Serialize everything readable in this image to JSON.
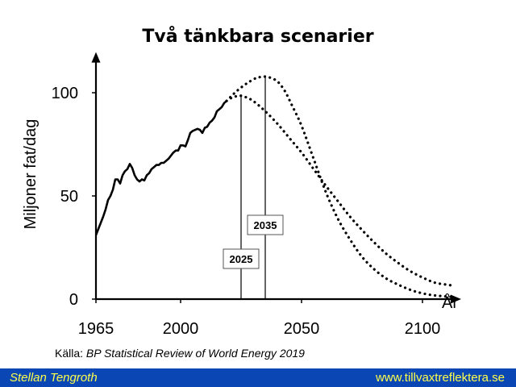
{
  "chart_data": {
    "type": "line",
    "title": "Två tänkbara scenarier",
    "ylabel": "Miljoner fat/dag",
    "xlabel": "År",
    "xlim": [
      1965,
      2115
    ],
    "ylim": [
      0,
      115
    ],
    "x_ticks": [
      1965,
      2000,
      2050,
      2100
    ],
    "y_ticks": [
      0,
      50,
      100
    ],
    "grid": false,
    "series": [
      {
        "style": "solid",
        "x": [
          1965,
          1966,
          1967,
          1968,
          1969,
          1970,
          1971,
          1972,
          1973,
          1974,
          1975,
          1976,
          1977,
          1978,
          1979,
          1980,
          1981,
          1982,
          1983,
          1984,
          1985,
          1986,
          1987,
          1988,
          1989,
          1990,
          1991,
          1992,
          1993,
          1994,
          1995,
          1996,
          1997,
          1998,
          1999,
          2000,
          2001,
          2002,
          2003,
          2004,
          2005,
          2006,
          2007,
          2008,
          2009,
          2010,
          2011,
          2012,
          2013,
          2014,
          2015,
          2016,
          2017,
          2018,
          2019
        ],
        "values": [
          31,
          34,
          37,
          40,
          43.5,
          48,
          50,
          53,
          58,
          58,
          56,
          60,
          62,
          63,
          65.5,
          63.5,
          60,
          58,
          57,
          58,
          57.5,
          60,
          61,
          63,
          64,
          65,
          65,
          66,
          66,
          67,
          68,
          69.5,
          71,
          72,
          72,
          74.5,
          74.5,
          74,
          77,
          80.5,
          81.5,
          82,
          82.5,
          82,
          80.5,
          83,
          83.5,
          85.5,
          86.5,
          88,
          91,
          92,
          93,
          95,
          96
        ]
      },
      {
        "label": "2025",
        "style": "dotted",
        "x": [
          2019,
          2021,
          2023,
          2025,
          2027,
          2030,
          2035,
          2040,
          2045,
          2050,
          2055,
          2060,
          2065,
          2070,
          2075,
          2080,
          2085,
          2090,
          2095,
          2100,
          2105,
          2110,
          2113
        ],
        "values": [
          96,
          97.5,
          98.3,
          98.5,
          97.8,
          96,
          91,
          85,
          78,
          71,
          63,
          55,
          47.5,
          40,
          33.5,
          27.5,
          22,
          17.5,
          13.5,
          10.5,
          8,
          7,
          6.5
        ]
      },
      {
        "label": "2035",
        "style": "dotted",
        "x": [
          2019,
          2022,
          2025,
          2028,
          2031,
          2033,
          2035,
          2037,
          2040,
          2043,
          2046,
          2050,
          2055,
          2060,
          2065,
          2070,
          2075,
          2080,
          2085,
          2090,
          2095,
          2100,
          2105,
          2110,
          2113
        ],
        "values": [
          96,
          99.5,
          102.5,
          105,
          107,
          107.6,
          107.8,
          107.3,
          105.5,
          101,
          94,
          84,
          68,
          52,
          39,
          29,
          20.5,
          14.5,
          10,
          7,
          4.5,
          2.8,
          1.8,
          1.3,
          1
        ]
      }
    ],
    "markers": [
      {
        "x": 2025,
        "label": "2025"
      },
      {
        "x": 2035,
        "label": "2035"
      }
    ]
  },
  "source": {
    "prefix": "Källa: ",
    "title": "BP Statistical Review of World Energy 2019"
  },
  "footer": {
    "author": "Stellan Tengroth",
    "url": "www.tillvaxtreflektera.se",
    "bar_color": "#0a47b4",
    "text_color": "#ffff4a"
  }
}
